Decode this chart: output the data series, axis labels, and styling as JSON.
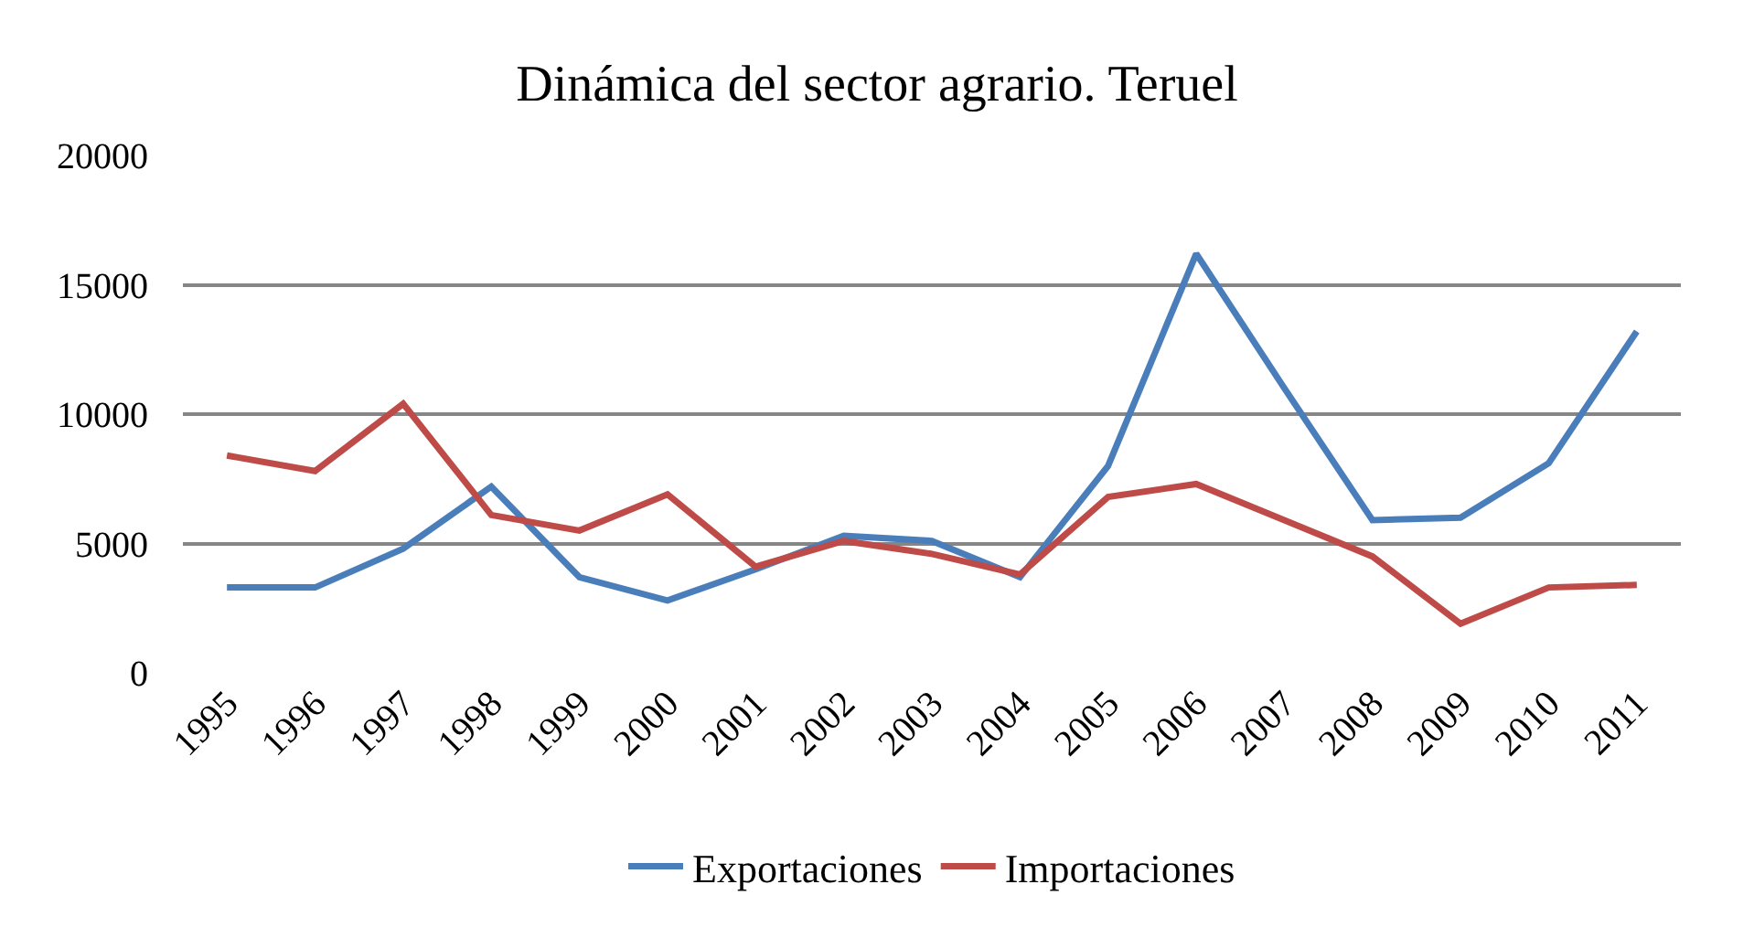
{
  "chart_data": {
    "type": "line",
    "title": "Dinámica del sector agrario. Teruel",
    "categories": [
      "1995",
      "1996",
      "1997",
      "1998",
      "1999",
      "2000",
      "2001",
      "2002",
      "2003",
      "2004",
      "2005",
      "2006",
      "2007",
      "2008",
      "2009",
      "2010",
      "2011"
    ],
    "series": [
      {
        "name": "Exportaciones",
        "color": "#4a7ebb",
        "values": [
          3300,
          3300,
          4800,
          7200,
          3700,
          2800,
          4000,
          5300,
          5100,
          3700,
          8000,
          16200,
          11000,
          5900,
          6000,
          8100,
          13200
        ]
      },
      {
        "name": "Importaciones",
        "color": "#be4b48",
        "values": [
          8400,
          7800,
          10400,
          6100,
          5500,
          6900,
          4100,
          5100,
          4600,
          3800,
          6800,
          7300,
          5900,
          4500,
          1900,
          3300,
          3400
        ]
      }
    ],
    "ylim": [
      0,
      20000
    ],
    "yticks": [
      0,
      5000,
      10000,
      15000,
      20000
    ],
    "grid": "y",
    "legend": "bottom",
    "marker": "none",
    "line_style": "solid"
  }
}
